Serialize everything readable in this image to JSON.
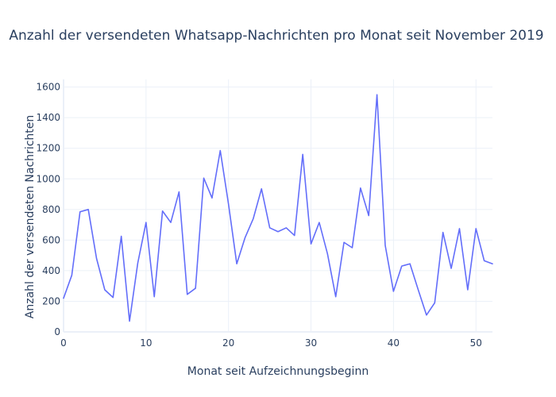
{
  "chart_data": {
    "type": "line",
    "title": "Anzahl der versendeten Whatsapp-Nachrichten pro Monat seit November 2019",
    "xlabel": "Monat seit Aufzeichnungsbeginn",
    "ylabel": "Anzahl der versendeten Nachrichten",
    "xlim": [
      0,
      52
    ],
    "ylim": [
      0,
      1650
    ],
    "xticks": [
      0,
      10,
      20,
      30,
      40,
      50
    ],
    "yticks": [
      0,
      200,
      400,
      600,
      800,
      1000,
      1200,
      1400,
      1600
    ],
    "grid": true,
    "series": [
      {
        "color": "#636efa",
        "x": [
          0,
          1,
          2,
          3,
          4,
          5,
          6,
          7,
          8,
          9,
          10,
          11,
          12,
          13,
          14,
          15,
          16,
          17,
          18,
          19,
          20,
          21,
          22,
          23,
          24,
          25,
          26,
          27,
          28,
          29,
          30,
          31,
          32,
          33,
          34,
          35,
          36,
          37,
          38,
          39,
          40,
          41,
          42,
          43,
          44,
          45,
          46,
          47,
          48,
          49,
          50,
          51,
          52
        ],
        "y": [
          220,
          370,
          785,
          800,
          480,
          275,
          225,
          625,
          70,
          450,
          715,
          230,
          790,
          715,
          915,
          245,
          285,
          1005,
          875,
          1185,
          835,
          445,
          615,
          740,
          935,
          680,
          655,
          680,
          630,
          1160,
          575,
          715,
          510,
          230,
          585,
          550,
          940,
          760,
          1550,
          565,
          265,
          430,
          445,
          275,
          110,
          190,
          650,
          415,
          675,
          275,
          675,
          465,
          445
        ]
      }
    ]
  }
}
